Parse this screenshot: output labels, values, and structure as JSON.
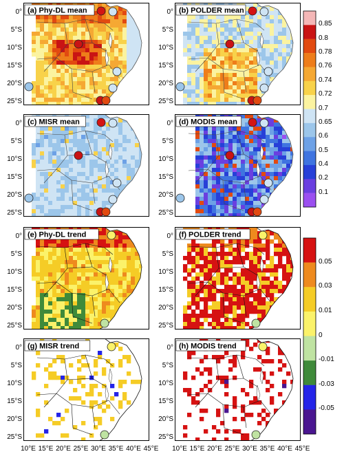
{
  "panels": [
    {
      "id": "a",
      "label": "(a) Phy-DL mean",
      "kind": "mean",
      "base": "#e8881c",
      "variant": "warm"
    },
    {
      "id": "b",
      "label": "(b) POLDER mean",
      "kind": "mean",
      "base": "#8fbde8",
      "variant": "mixed"
    },
    {
      "id": "c",
      "label": "(c) MISR mean",
      "kind": "mean",
      "base": "#8dbde6",
      "variant": "blue"
    },
    {
      "id": "d",
      "label": "(d) MODIS mean",
      "kind": "mean",
      "base": "#3e6fe0",
      "variant": "deep"
    },
    {
      "id": "e",
      "label": "(e) Phy-DL trend",
      "kind": "trend",
      "base": "#f3d321",
      "variant": "yellow"
    },
    {
      "id": "f",
      "label": "(f) POLDER trend",
      "kind": "trend",
      "base": "#d81a1a",
      "variant": "red"
    },
    {
      "id": "g",
      "label": "(g) MISR trend",
      "kind": "trend",
      "base": "#ffffff",
      "variant": "sparse"
    },
    {
      "id": "h",
      "label": "(h) MODIS trend",
      "kind": "trend",
      "base": "#ffffff",
      "variant": "sparsered"
    }
  ],
  "lat_labels": [
    "0°",
    "5°S",
    "10°S",
    "15°S",
    "20°S",
    "25°S"
  ],
  "lon_labels": [
    "10°E",
    "15°E",
    "20°E",
    "25°E",
    "30°E",
    "35°E",
    "40°E",
    "45°E"
  ],
  "mean_colorbar": {
    "labels": [
      "0.85",
      "0.8",
      "0.78",
      "0.76",
      "0.74",
      "0.72",
      "0.7",
      "0.65",
      "0.6",
      "0.5",
      "0.4",
      "0.2",
      "0.1"
    ],
    "colors": [
      "#f4b7b7",
      "#c91414",
      "#e24a10",
      "#ee7d1a",
      "#f5a833",
      "#f8d24a",
      "#fbf3a0",
      "#cfe4f4",
      "#9cc6ea",
      "#6da1e6",
      "#3f74e0",
      "#2740d8",
      "#6a3fe0",
      "#9b4ff0"
    ]
  },
  "trend_colorbar": {
    "labels": [
      "0.05",
      "0.03",
      "0.01",
      "0",
      "-0.01",
      "-0.03",
      "-0.05"
    ],
    "colors": [
      "#d61212",
      "#ee8a1e",
      "#f5cc26",
      "#fbf26a",
      "#bfe3a2",
      "#3f8a3a",
      "#2424e8",
      "#4a1690"
    ]
  }
}
